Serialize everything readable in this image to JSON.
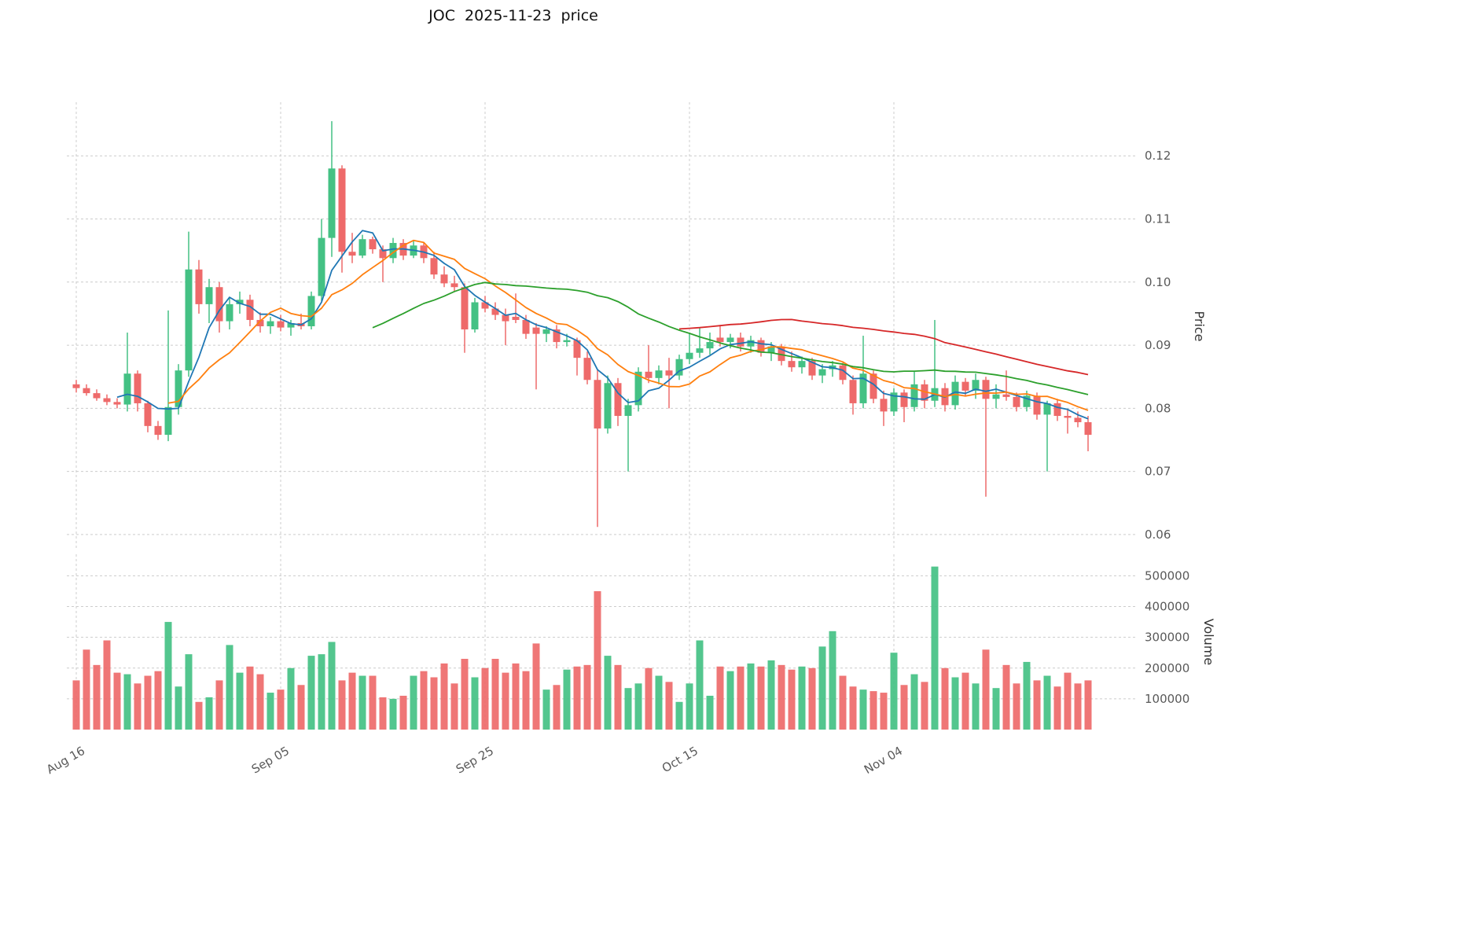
{
  "title": "JOC  2025-11-23  price",
  "axes": {
    "price_axis_label": "Price",
    "volume_axis_label": "Volume",
    "price_ticks": [
      {
        "value": 0.06,
        "label": "0.06"
      },
      {
        "value": 0.07,
        "label": "0.07"
      },
      {
        "value": 0.08,
        "label": "0.08"
      },
      {
        "value": 0.09,
        "label": "0.09"
      },
      {
        "value": 0.1,
        "label": "0.10"
      },
      {
        "value": 0.11,
        "label": "0.11"
      },
      {
        "value": 0.12,
        "label": "0.12"
      }
    ],
    "volume_ticks": [
      {
        "value": 100000,
        "label": "100000"
      },
      {
        "value": 200000,
        "label": "200000"
      },
      {
        "value": 300000,
        "label": "300000"
      },
      {
        "value": 400000,
        "label": "400000"
      },
      {
        "value": 500000,
        "label": "500000"
      }
    ],
    "x_ticks": [
      {
        "label": "Aug 16",
        "index": 0
      },
      {
        "label": "Sep 05",
        "index": 20
      },
      {
        "label": "Sep 25",
        "index": 40
      },
      {
        "label": "Oct 15",
        "index": 60
      },
      {
        "label": "Nov 04",
        "index": 80
      }
    ]
  },
  "style": {
    "up_color": "#44c184",
    "down_color": "#ee6a6a",
    "grid_color": "#cccccc",
    "tick_label_color": "#595959",
    "title_color": "#111111"
  },
  "chart_data": {
    "type": "candlestick",
    "title": "JOC  2025-11-23  price",
    "ylabel": "Price",
    "ylabel_secondary": "Volume",
    "grid": true,
    "price_ylim": [
      0.0575,
      0.1285
    ],
    "volume_ylim": [
      0,
      570000
    ],
    "moving_averages": [
      {
        "name": "MA5",
        "period": 5,
        "color": "#1f77b4"
      },
      {
        "name": "MA10",
        "period": 10,
        "color": "#ff7f0e"
      },
      {
        "name": "MA30",
        "period": 30,
        "color": "#2ca02c"
      },
      {
        "name": "MA60",
        "period": 60,
        "color": "#d62728"
      }
    ],
    "columns": [
      "date",
      "open",
      "high",
      "low",
      "close",
      "volume"
    ],
    "candles": [
      [
        "2025-08-16",
        0.0838,
        0.0845,
        0.0825,
        0.0832,
        160000
      ],
      [
        "2025-08-17",
        0.0832,
        0.0838,
        0.082,
        0.0824,
        260000
      ],
      [
        "2025-08-18",
        0.0824,
        0.083,
        0.0812,
        0.0816,
        210000
      ],
      [
        "2025-08-19",
        0.0816,
        0.0822,
        0.0805,
        0.081,
        290000
      ],
      [
        "2025-08-20",
        0.081,
        0.0816,
        0.08,
        0.0806,
        185000
      ],
      [
        "2025-08-21",
        0.0806,
        0.092,
        0.0795,
        0.0855,
        180000
      ],
      [
        "2025-08-22",
        0.0855,
        0.086,
        0.0795,
        0.0808,
        150000
      ],
      [
        "2025-08-23",
        0.0808,
        0.0812,
        0.0762,
        0.0772,
        175000
      ],
      [
        "2025-08-24",
        0.0772,
        0.078,
        0.075,
        0.0758,
        190000
      ],
      [
        "2025-08-25",
        0.0758,
        0.0955,
        0.0748,
        0.0802,
        350000
      ],
      [
        "2025-08-26",
        0.0802,
        0.087,
        0.079,
        0.086,
        140000
      ],
      [
        "2025-08-27",
        0.086,
        0.108,
        0.085,
        0.102,
        245000
      ],
      [
        "2025-08-28",
        0.102,
        0.1035,
        0.095,
        0.0965,
        90000
      ],
      [
        "2025-08-29",
        0.0965,
        0.1005,
        0.0935,
        0.0992,
        105000
      ],
      [
        "2025-08-30",
        0.0992,
        0.1,
        0.092,
        0.0938,
        160000
      ],
      [
        "2025-08-31",
        0.0938,
        0.0975,
        0.0925,
        0.0965,
        275000
      ],
      [
        "2025-09-01",
        0.0965,
        0.0985,
        0.095,
        0.0972,
        185000
      ],
      [
        "2025-09-02",
        0.0972,
        0.098,
        0.093,
        0.094,
        205000
      ],
      [
        "2025-09-03",
        0.094,
        0.0952,
        0.092,
        0.093,
        180000
      ],
      [
        "2025-09-04",
        0.093,
        0.0945,
        0.0918,
        0.0938,
        120000
      ],
      [
        "2025-09-05",
        0.0938,
        0.0948,
        0.0922,
        0.0928,
        130000
      ],
      [
        "2025-09-06",
        0.0928,
        0.094,
        0.0915,
        0.0935,
        200000
      ],
      [
        "2025-09-07",
        0.0935,
        0.095,
        0.0925,
        0.093,
        145000
      ],
      [
        "2025-09-08",
        0.093,
        0.0985,
        0.0925,
        0.0978,
        240000
      ],
      [
        "2025-09-09",
        0.0978,
        0.11,
        0.097,
        0.107,
        245000
      ],
      [
        "2025-09-10",
        0.107,
        0.1255,
        0.104,
        0.118,
        285000
      ],
      [
        "2025-09-11",
        0.118,
        0.1185,
        0.1015,
        0.1048,
        160000
      ],
      [
        "2025-09-12",
        0.1048,
        0.1078,
        0.103,
        0.1042,
        185000
      ],
      [
        "2025-09-13",
        0.1042,
        0.1075,
        0.1038,
        0.1068,
        175000
      ],
      [
        "2025-09-14",
        0.1068,
        0.1072,
        0.1045,
        0.1052,
        175000
      ],
      [
        "2025-09-15",
        0.1052,
        0.1058,
        0.1,
        0.1038,
        105000
      ],
      [
        "2025-09-16",
        0.1038,
        0.107,
        0.103,
        0.1062,
        100000
      ],
      [
        "2025-09-17",
        0.1062,
        0.1068,
        0.1035,
        0.1042,
        110000
      ],
      [
        "2025-09-18",
        0.1042,
        0.1065,
        0.1038,
        0.1058,
        175000
      ],
      [
        "2025-09-19",
        0.1058,
        0.1062,
        0.103,
        0.1038,
        190000
      ],
      [
        "2025-09-20",
        0.1038,
        0.1048,
        0.1005,
        0.1012,
        170000
      ],
      [
        "2025-09-21",
        0.1012,
        0.1025,
        0.0992,
        0.0998,
        215000
      ],
      [
        "2025-09-22",
        0.0998,
        0.101,
        0.0985,
        0.0992,
        150000
      ],
      [
        "2025-09-23",
        0.0992,
        0.0998,
        0.0888,
        0.0925,
        230000
      ],
      [
        "2025-09-24",
        0.0925,
        0.0975,
        0.092,
        0.0968,
        170000
      ],
      [
        "2025-09-25",
        0.0968,
        0.0978,
        0.0952,
        0.0958,
        200000
      ],
      [
        "2025-09-26",
        0.0958,
        0.0968,
        0.094,
        0.0948,
        230000
      ],
      [
        "2025-09-27",
        0.0948,
        0.0958,
        0.09,
        0.0938,
        185000
      ],
      [
        "2025-09-28",
        0.0945,
        0.0982,
        0.0935,
        0.094,
        215000
      ],
      [
        "2025-09-29",
        0.094,
        0.0948,
        0.091,
        0.0918,
        190000
      ],
      [
        "2025-09-30",
        0.0928,
        0.0935,
        0.083,
        0.0918,
        280000
      ],
      [
        "2025-10-01",
        0.0918,
        0.093,
        0.0905,
        0.0925,
        130000
      ],
      [
        "2025-10-02",
        0.0925,
        0.0932,
        0.0895,
        0.0905,
        145000
      ],
      [
        "2025-10-03",
        0.0905,
        0.0918,
        0.0898,
        0.0908,
        195000
      ],
      [
        "2025-10-04",
        0.0908,
        0.0912,
        0.0852,
        0.088,
        205000
      ],
      [
        "2025-10-05",
        0.088,
        0.089,
        0.0838,
        0.0845,
        210000
      ],
      [
        "2025-10-06",
        0.0845,
        0.0862,
        0.0612,
        0.0768,
        450000
      ],
      [
        "2025-10-07",
        0.0768,
        0.0852,
        0.076,
        0.084,
        240000
      ],
      [
        "2025-10-08",
        0.084,
        0.0848,
        0.0772,
        0.0788,
        210000
      ],
      [
        "2025-10-09",
        0.0788,
        0.0815,
        0.07,
        0.0805,
        135000
      ],
      [
        "2025-10-10",
        0.0805,
        0.0865,
        0.0795,
        0.0858,
        150000
      ],
      [
        "2025-10-11",
        0.0858,
        0.09,
        0.084,
        0.0848,
        200000
      ],
      [
        "2025-10-12",
        0.0848,
        0.0868,
        0.0838,
        0.086,
        175000
      ],
      [
        "2025-10-13",
        0.086,
        0.088,
        0.08,
        0.0852,
        155000
      ],
      [
        "2025-10-14",
        0.0852,
        0.0885,
        0.0845,
        0.0878,
        90000
      ],
      [
        "2025-10-15",
        0.0878,
        0.092,
        0.087,
        0.0888,
        150000
      ],
      [
        "2025-10-16",
        0.0888,
        0.0928,
        0.088,
        0.0895,
        290000
      ],
      [
        "2025-10-17",
        0.0895,
        0.092,
        0.0885,
        0.0905,
        110000
      ],
      [
        "2025-10-18",
        0.0912,
        0.0932,
        0.0898,
        0.0905,
        205000
      ],
      [
        "2025-10-19",
        0.0905,
        0.0918,
        0.0895,
        0.0912,
        190000
      ],
      [
        "2025-10-20",
        0.0912,
        0.092,
        0.089,
        0.0898,
        205000
      ],
      [
        "2025-10-21",
        0.0898,
        0.0915,
        0.0888,
        0.0908,
        215000
      ],
      [
        "2025-10-22",
        0.0908,
        0.0912,
        0.0882,
        0.0888,
        205000
      ],
      [
        "2025-10-23",
        0.0888,
        0.0905,
        0.0875,
        0.0898,
        225000
      ],
      [
        "2025-10-24",
        0.0898,
        0.0902,
        0.0868,
        0.0875,
        210000
      ],
      [
        "2025-10-25",
        0.0875,
        0.089,
        0.0858,
        0.0865,
        195000
      ],
      [
        "2025-10-26",
        0.0865,
        0.0882,
        0.0855,
        0.0875,
        205000
      ],
      [
        "2025-10-27",
        0.0875,
        0.088,
        0.0845,
        0.0852,
        200000
      ],
      [
        "2025-10-28",
        0.0852,
        0.087,
        0.084,
        0.0862,
        270000
      ],
      [
        "2025-10-29",
        0.0862,
        0.0875,
        0.085,
        0.0868,
        320000
      ],
      [
        "2025-10-30",
        0.0868,
        0.0872,
        0.0838,
        0.0845,
        175000
      ],
      [
        "2025-10-31",
        0.0845,
        0.0852,
        0.079,
        0.0808,
        140000
      ],
      [
        "2025-11-01",
        0.0808,
        0.0915,
        0.08,
        0.0855,
        130000
      ],
      [
        "2025-11-02",
        0.0855,
        0.086,
        0.0808,
        0.0815,
        125000
      ],
      [
        "2025-11-03",
        0.0815,
        0.0828,
        0.0772,
        0.0795,
        120000
      ],
      [
        "2025-11-04",
        0.0795,
        0.0832,
        0.0788,
        0.0825,
        250000
      ],
      [
        "2025-11-05",
        0.0825,
        0.083,
        0.0778,
        0.0802,
        145000
      ],
      [
        "2025-11-06",
        0.0802,
        0.0858,
        0.0795,
        0.0838,
        180000
      ],
      [
        "2025-11-07",
        0.0838,
        0.0845,
        0.08,
        0.0812,
        155000
      ],
      [
        "2025-11-08",
        0.0812,
        0.094,
        0.0802,
        0.0832,
        530000
      ],
      [
        "2025-11-09",
        0.0832,
        0.084,
        0.0795,
        0.0805,
        200000
      ],
      [
        "2025-11-10",
        0.0805,
        0.0852,
        0.0798,
        0.0842,
        170000
      ],
      [
        "2025-11-11",
        0.0842,
        0.0848,
        0.082,
        0.0828,
        185000
      ],
      [
        "2025-11-12",
        0.0828,
        0.0855,
        0.0815,
        0.0845,
        150000
      ],
      [
        "2025-11-13",
        0.0845,
        0.085,
        0.066,
        0.0815,
        260000
      ],
      [
        "2025-11-14",
        0.0815,
        0.0838,
        0.08,
        0.0822,
        135000
      ],
      [
        "2025-11-15",
        0.0822,
        0.086,
        0.0812,
        0.0818,
        210000
      ],
      [
        "2025-11-16",
        0.0818,
        0.0825,
        0.0795,
        0.0802,
        150000
      ],
      [
        "2025-11-17",
        0.0802,
        0.0828,
        0.0795,
        0.082,
        220000
      ],
      [
        "2025-11-18",
        0.082,
        0.0825,
        0.0782,
        0.079,
        160000
      ],
      [
        "2025-11-19",
        0.079,
        0.0812,
        0.07,
        0.0808,
        175000
      ],
      [
        "2025-11-20",
        0.0808,
        0.0815,
        0.078,
        0.0788,
        140000
      ],
      [
        "2025-11-21",
        0.0788,
        0.0798,
        0.076,
        0.0785,
        185000
      ],
      [
        "2025-11-22",
        0.0785,
        0.0795,
        0.077,
        0.0778,
        150000
      ],
      [
        "2025-11-23",
        0.0778,
        0.0788,
        0.0732,
        0.0758,
        160000
      ]
    ]
  }
}
